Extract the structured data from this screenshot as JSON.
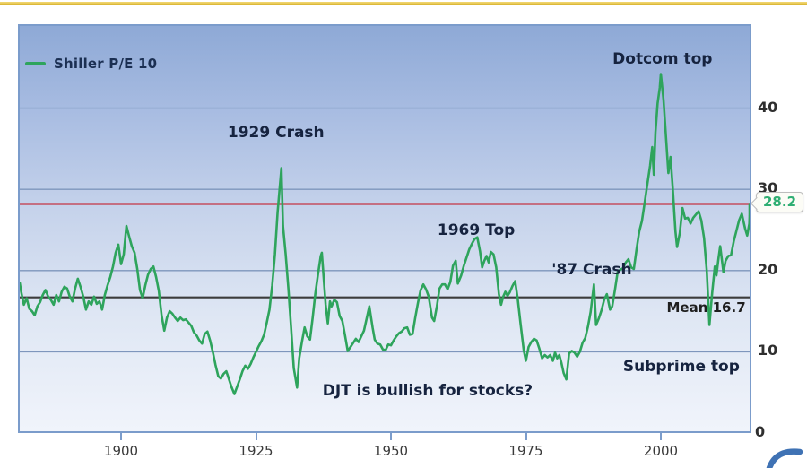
{
  "page": {
    "top_accent_color": "#d9b532",
    "background": "#ffffff"
  },
  "legend": {
    "label": "Shiller P/E 10",
    "swatch_color": "#2ea45c"
  },
  "colors": {
    "series_green": "#2ea45c",
    "gridline": "#7e96bc",
    "plot_border": "#7b9ccb",
    "annotation_navy": "#16233f",
    "current_value_green": "#2fae73",
    "red_line": "#c44f60",
    "mean_line": "#3c3c3c"
  },
  "chart_data": {
    "type": "line",
    "title": "",
    "xlabel": "",
    "ylabel": "",
    "x_axis": {
      "ticks": [
        1900,
        1925,
        1950,
        1975,
        2000
      ],
      "range": [
        1881,
        2017
      ]
    },
    "y_axis": {
      "labels": [
        40,
        30,
        20,
        10,
        0
      ],
      "range": [
        0,
        50.2
      ],
      "side": "right",
      "grid": true
    },
    "gridlines": [
      10,
      20,
      30,
      40
    ],
    "mean_line": {
      "value": 16.7,
      "label": "Mean 16.7",
      "color": "#3c3c3c"
    },
    "current_value_line": {
      "value": 28.2,
      "label": "28.2",
      "color": "#c44f60",
      "label_color": "#2fae73"
    },
    "annotations": [
      {
        "name": "annotation-1929-crash",
        "text": "1929 Crash",
        "year": 1928.7,
        "value": 37.0,
        "style": "headline"
      },
      {
        "name": "annotation-dotcom-top",
        "text": "Dotcom top",
        "year": 2000.3,
        "value": 46.0,
        "style": "headline"
      },
      {
        "name": "annotation-1969-top",
        "text": "1969 Top",
        "year": 1965.8,
        "value": 24.9,
        "style": "headline"
      },
      {
        "name": "annotation-87-crash",
        "text": "'87 Crash",
        "year": 1987.2,
        "value": 20.1,
        "style": "headline"
      },
      {
        "name": "annotation-mean-label",
        "text": "Mean 16.7",
        "year": 2008.4,
        "value": 15.4,
        "style": "mean"
      },
      {
        "name": "annotation-subprime-top",
        "text": "Subprime top",
        "year": 2003.8,
        "value": 8.2,
        "style": "headline"
      },
      {
        "name": "annotation-djt-question",
        "text": "DJT is bullish for stocks?",
        "year": 1956.8,
        "value": 5.2,
        "style": "headline"
      }
    ],
    "series": [
      {
        "name": "Shiller P/E 10",
        "color": "#2ea45c",
        "points": [
          [
            1881,
            18.5
          ],
          [
            1881.5,
            17.4
          ],
          [
            1882,
            15.8
          ],
          [
            1882.5,
            16.6
          ],
          [
            1883,
            15.3
          ],
          [
            1883.5,
            15.0
          ],
          [
            1884,
            14.5
          ],
          [
            1884.5,
            15.6
          ],
          [
            1885,
            16.1
          ],
          [
            1885.5,
            17.0
          ],
          [
            1886,
            17.6
          ],
          [
            1886.5,
            16.8
          ],
          [
            1887,
            16.4
          ],
          [
            1887.5,
            15.8
          ],
          [
            1888,
            17.0
          ],
          [
            1888.5,
            16.2
          ],
          [
            1889,
            17.4
          ],
          [
            1889.5,
            18.0
          ],
          [
            1890,
            17.8
          ],
          [
            1890.5,
            16.8
          ],
          [
            1891,
            16.2
          ],
          [
            1891.5,
            17.8
          ],
          [
            1892,
            19.0
          ],
          [
            1892.5,
            18.0
          ],
          [
            1893,
            16.8
          ],
          [
            1893.5,
            15.2
          ],
          [
            1894,
            16.2
          ],
          [
            1894.5,
            15.8
          ],
          [
            1895,
            16.8
          ],
          [
            1895.5,
            15.9
          ],
          [
            1896,
            16.2
          ],
          [
            1896.5,
            15.2
          ],
          [
            1897,
            17.0
          ],
          [
            1897.5,
            18.2
          ],
          [
            1898,
            19.2
          ],
          [
            1898.5,
            20.5
          ],
          [
            1899,
            22.2
          ],
          [
            1899.5,
            23.2
          ],
          [
            1900,
            20.8
          ],
          [
            1900.5,
            22.0
          ],
          [
            1901,
            25.5
          ],
          [
            1901.5,
            24.2
          ],
          [
            1902,
            23.0
          ],
          [
            1902.5,
            22.2
          ],
          [
            1903,
            20.2
          ],
          [
            1903.5,
            17.6
          ],
          [
            1904,
            16.6
          ],
          [
            1904.5,
            18.2
          ],
          [
            1905,
            19.5
          ],
          [
            1905.5,
            20.2
          ],
          [
            1906,
            20.5
          ],
          [
            1906.5,
            19.2
          ],
          [
            1907,
            17.5
          ],
          [
            1907.5,
            14.5
          ],
          [
            1908,
            12.6
          ],
          [
            1908.5,
            14.2
          ],
          [
            1909,
            15.0
          ],
          [
            1909.5,
            14.7
          ],
          [
            1910,
            14.2
          ],
          [
            1910.5,
            13.8
          ],
          [
            1911,
            14.2
          ],
          [
            1911.5,
            13.9
          ],
          [
            1912,
            14.0
          ],
          [
            1912.5,
            13.6
          ],
          [
            1913,
            13.2
          ],
          [
            1913.5,
            12.4
          ],
          [
            1914,
            12.0
          ],
          [
            1914.5,
            11.4
          ],
          [
            1915,
            11.0
          ],
          [
            1915.5,
            12.2
          ],
          [
            1916,
            12.5
          ],
          [
            1916.5,
            11.4
          ],
          [
            1917,
            10.0
          ],
          [
            1917.5,
            8.4
          ],
          [
            1918,
            7.0
          ],
          [
            1918.5,
            6.7
          ],
          [
            1919,
            7.3
          ],
          [
            1919.5,
            7.6
          ],
          [
            1920,
            6.6
          ],
          [
            1920.5,
            5.6
          ],
          [
            1921,
            4.8
          ],
          [
            1921.5,
            5.7
          ],
          [
            1922,
            6.6
          ],
          [
            1922.5,
            7.6
          ],
          [
            1923,
            8.3
          ],
          [
            1923.5,
            7.9
          ],
          [
            1924,
            8.5
          ],
          [
            1924.5,
            9.3
          ],
          [
            1925,
            10.0
          ],
          [
            1925.5,
            10.7
          ],
          [
            1926,
            11.3
          ],
          [
            1926.5,
            12.1
          ],
          [
            1927,
            13.6
          ],
          [
            1927.5,
            15.2
          ],
          [
            1928,
            18.2
          ],
          [
            1928.5,
            22.0
          ],
          [
            1929,
            27.2
          ],
          [
            1929.7,
            32.6
          ],
          [
            1930,
            25.5
          ],
          [
            1930.5,
            22.0
          ],
          [
            1931,
            17.8
          ],
          [
            1931.5,
            13.0
          ],
          [
            1932,
            8.0
          ],
          [
            1932.6,
            5.6
          ],
          [
            1933,
            9.2
          ],
          [
            1933.5,
            11.2
          ],
          [
            1934,
            13.0
          ],
          [
            1934.5,
            11.9
          ],
          [
            1935,
            11.5
          ],
          [
            1935.5,
            14.2
          ],
          [
            1936,
            17.2
          ],
          [
            1936.5,
            19.6
          ],
          [
            1937,
            21.8
          ],
          [
            1937.2,
            22.2
          ],
          [
            1937.9,
            15.8
          ],
          [
            1938.3,
            13.5
          ],
          [
            1938.7,
            16.2
          ],
          [
            1939,
            15.6
          ],
          [
            1939.5,
            16.4
          ],
          [
            1940,
            16.1
          ],
          [
            1940.5,
            14.4
          ],
          [
            1941,
            13.8
          ],
          [
            1941.5,
            12.0
          ],
          [
            1942,
            10.1
          ],
          [
            1942.5,
            10.6
          ],
          [
            1943,
            11.1
          ],
          [
            1943.5,
            11.6
          ],
          [
            1944,
            11.2
          ],
          [
            1944.5,
            11.9
          ],
          [
            1945,
            12.6
          ],
          [
            1945.5,
            14.1
          ],
          [
            1946,
            15.6
          ],
          [
            1946.6,
            13.0
          ],
          [
            1947,
            11.5
          ],
          [
            1947.5,
            11.0
          ],
          [
            1948,
            10.9
          ],
          [
            1948.5,
            10.3
          ],
          [
            1949,
            10.2
          ],
          [
            1949.5,
            10.9
          ],
          [
            1950,
            10.8
          ],
          [
            1950.5,
            11.4
          ],
          [
            1951,
            11.9
          ],
          [
            1951.5,
            12.3
          ],
          [
            1952,
            12.5
          ],
          [
            1952.5,
            12.9
          ],
          [
            1953,
            13.0
          ],
          [
            1953.5,
            12.1
          ],
          [
            1954,
            12.2
          ],
          [
            1954.5,
            14.2
          ],
          [
            1955,
            16.0
          ],
          [
            1955.5,
            17.6
          ],
          [
            1956,
            18.3
          ],
          [
            1956.5,
            17.7
          ],
          [
            1957,
            16.8
          ],
          [
            1957.6,
            14.2
          ],
          [
            1958,
            13.8
          ],
          [
            1958.5,
            15.6
          ],
          [
            1959,
            17.8
          ],
          [
            1959.5,
            18.3
          ],
          [
            1960,
            18.3
          ],
          [
            1960.5,
            17.7
          ],
          [
            1961,
            18.6
          ],
          [
            1961.5,
            20.6
          ],
          [
            1962,
            21.2
          ],
          [
            1962.4,
            18.4
          ],
          [
            1963,
            19.4
          ],
          [
            1963.5,
            20.6
          ],
          [
            1964,
            21.6
          ],
          [
            1964.5,
            22.6
          ],
          [
            1965,
            23.3
          ],
          [
            1965.5,
            23.9
          ],
          [
            1966,
            24.1
          ],
          [
            1966.5,
            22.4
          ],
          [
            1966.9,
            20.4
          ],
          [
            1967.3,
            21.2
          ],
          [
            1967.7,
            21.8
          ],
          [
            1968.1,
            21.0
          ],
          [
            1968.5,
            22.3
          ],
          [
            1969,
            22.0
          ],
          [
            1969.5,
            20.4
          ],
          [
            1970,
            17.1
          ],
          [
            1970.4,
            15.8
          ],
          [
            1970.8,
            16.8
          ],
          [
            1971.2,
            17.4
          ],
          [
            1971.6,
            16.9
          ],
          [
            1972,
            17.3
          ],
          [
            1972.5,
            18.1
          ],
          [
            1973,
            18.7
          ],
          [
            1973.5,
            16.4
          ],
          [
            1974,
            13.5
          ],
          [
            1974.6,
            10.2
          ],
          [
            1975,
            8.9
          ],
          [
            1975.5,
            10.6
          ],
          [
            1976,
            11.2
          ],
          [
            1976.5,
            11.6
          ],
          [
            1977,
            11.4
          ],
          [
            1977.5,
            10.4
          ],
          [
            1978,
            9.2
          ],
          [
            1978.5,
            9.6
          ],
          [
            1979,
            9.3
          ],
          [
            1979.5,
            9.6
          ],
          [
            1980,
            8.9
          ],
          [
            1980.4,
            9.9
          ],
          [
            1980.8,
            9.2
          ],
          [
            1981.2,
            9.6
          ],
          [
            1981.6,
            8.6
          ],
          [
            1982,
            7.4
          ],
          [
            1982.5,
            6.6
          ],
          [
            1983,
            9.8
          ],
          [
            1983.5,
            10.1
          ],
          [
            1984,
            9.9
          ],
          [
            1984.5,
            9.4
          ],
          [
            1985,
            10.0
          ],
          [
            1985.5,
            11.1
          ],
          [
            1986,
            11.7
          ],
          [
            1986.5,
            13.1
          ],
          [
            1987,
            14.9
          ],
          [
            1987.6,
            18.3
          ],
          [
            1988,
            13.3
          ],
          [
            1988.5,
            14.1
          ],
          [
            1989,
            15.1
          ],
          [
            1989.5,
            16.4
          ],
          [
            1990,
            17.1
          ],
          [
            1990.6,
            15.2
          ],
          [
            1991,
            15.6
          ],
          [
            1991.5,
            17.6
          ],
          [
            1992,
            19.8
          ],
          [
            1992.5,
            20.1
          ],
          [
            1993,
            20.3
          ],
          [
            1993.5,
            21.0
          ],
          [
            1994,
            21.4
          ],
          [
            1994.5,
            20.4
          ],
          [
            1995,
            20.2
          ],
          [
            1995.5,
            22.6
          ],
          [
            1996,
            24.8
          ],
          [
            1996.5,
            26.1
          ],
          [
            1997,
            28.3
          ],
          [
            1997.5,
            30.6
          ],
          [
            1998,
            32.9
          ],
          [
            1998.4,
            35.2
          ],
          [
            1998.7,
            31.8
          ],
          [
            1999,
            37.0
          ],
          [
            1999.4,
            40.6
          ],
          [
            1999.8,
            42.5
          ],
          [
            2000,
            44.2
          ],
          [
            2000.5,
            41.0
          ],
          [
            2001,
            36.0
          ],
          [
            2001.4,
            32.0
          ],
          [
            2001.8,
            34.0
          ],
          [
            2002.2,
            30.3
          ],
          [
            2002.7,
            24.8
          ],
          [
            2003,
            22.9
          ],
          [
            2003.5,
            24.6
          ],
          [
            2004,
            27.7
          ],
          [
            2004.5,
            26.4
          ],
          [
            2005,
            26.5
          ],
          [
            2005.5,
            25.8
          ],
          [
            2006,
            26.5
          ],
          [
            2006.5,
            26.9
          ],
          [
            2007,
            27.3
          ],
          [
            2007.5,
            26.2
          ],
          [
            2008,
            24.0
          ],
          [
            2008.5,
            20.0
          ],
          [
            2009,
            13.3
          ],
          [
            2009.5,
            17.2
          ],
          [
            2010,
            20.5
          ],
          [
            2010.3,
            19.4
          ],
          [
            2010.7,
            21.6
          ],
          [
            2011,
            23.0
          ],
          [
            2011.6,
            19.8
          ],
          [
            2012,
            21.2
          ],
          [
            2012.5,
            21.8
          ],
          [
            2013,
            21.9
          ],
          [
            2013.5,
            23.6
          ],
          [
            2014,
            24.9
          ],
          [
            2014.5,
            26.2
          ],
          [
            2015,
            27.0
          ],
          [
            2015.6,
            25.2
          ],
          [
            2016,
            24.3
          ],
          [
            2016.4,
            25.8
          ],
          [
            2016.7,
            26.8
          ],
          [
            2017,
            28.2
          ]
        ]
      }
    ]
  }
}
